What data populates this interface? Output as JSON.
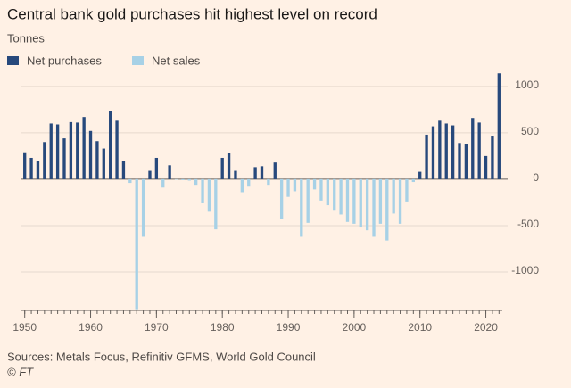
{
  "chart_data": {
    "type": "bar",
    "title": "Central bank gold purchases hit highest level on record",
    "subtitle": "Tonnes",
    "source": "Sources: Metals Focus, Refinitiv GFMS, World Gold Council",
    "credit": "© FT",
    "x": [
      1950,
      1951,
      1952,
      1953,
      1954,
      1955,
      1956,
      1957,
      1958,
      1959,
      1960,
      1961,
      1962,
      1963,
      1964,
      1965,
      1966,
      1967,
      1968,
      1969,
      1970,
      1971,
      1972,
      1973,
      1974,
      1975,
      1976,
      1977,
      1978,
      1979,
      1980,
      1981,
      1982,
      1983,
      1984,
      1985,
      1986,
      1987,
      1988,
      1989,
      1990,
      1991,
      1992,
      1993,
      1994,
      1995,
      1996,
      1997,
      1998,
      1999,
      2000,
      2001,
      2002,
      2003,
      2004,
      2005,
      2006,
      2007,
      2008,
      2009,
      2010,
      2011,
      2012,
      2013,
      2014,
      2015,
      2016,
      2017,
      2018,
      2019,
      2020,
      2021,
      2022
    ],
    "series": [
      {
        "name": "Net purchases",
        "color": "#27497c",
        "values": [
          290,
          230,
          200,
          400,
          600,
          590,
          440,
          615,
          610,
          670,
          520,
          410,
          330,
          730,
          630,
          200,
          null,
          null,
          null,
          90,
          230,
          null,
          150,
          null,
          null,
          null,
          null,
          null,
          null,
          null,
          230,
          280,
          90,
          null,
          null,
          130,
          140,
          null,
          180,
          null,
          null,
          null,
          null,
          null,
          null,
          null,
          null,
          null,
          null,
          null,
          null,
          null,
          null,
          null,
          null,
          null,
          null,
          null,
          null,
          null,
          80,
          480,
          570,
          630,
          600,
          580,
          390,
          380,
          660,
          610,
          250,
          460,
          1140
        ]
      },
      {
        "name": "Net sales",
        "color": "#a7d1e6",
        "values": [
          null,
          null,
          null,
          null,
          null,
          null,
          null,
          null,
          null,
          null,
          null,
          null,
          null,
          null,
          null,
          null,
          -40,
          -1400,
          -620,
          null,
          null,
          -90,
          null,
          -5,
          -10,
          -15,
          -60,
          -260,
          -350,
          -540,
          null,
          null,
          null,
          -140,
          -80,
          null,
          null,
          -60,
          null,
          -430,
          -190,
          -130,
          -620,
          -470,
          -110,
          -230,
          -280,
          -330,
          -380,
          -460,
          -480,
          -520,
          -550,
          -620,
          -480,
          -660,
          -370,
          -480,
          -240,
          -30,
          null,
          null,
          null,
          null,
          null,
          null,
          null,
          null,
          null,
          null,
          null,
          null,
          null
        ]
      }
    ],
    "xlim": [
      1949.5,
      2022.5
    ],
    "xticks": [
      1950,
      1960,
      1970,
      1980,
      1990,
      2000,
      2010,
      2020
    ],
    "ylim": [
      -1413,
      1200
    ],
    "yticks": [
      1000,
      500,
      0,
      -500,
      -1000
    ],
    "grid": true
  }
}
